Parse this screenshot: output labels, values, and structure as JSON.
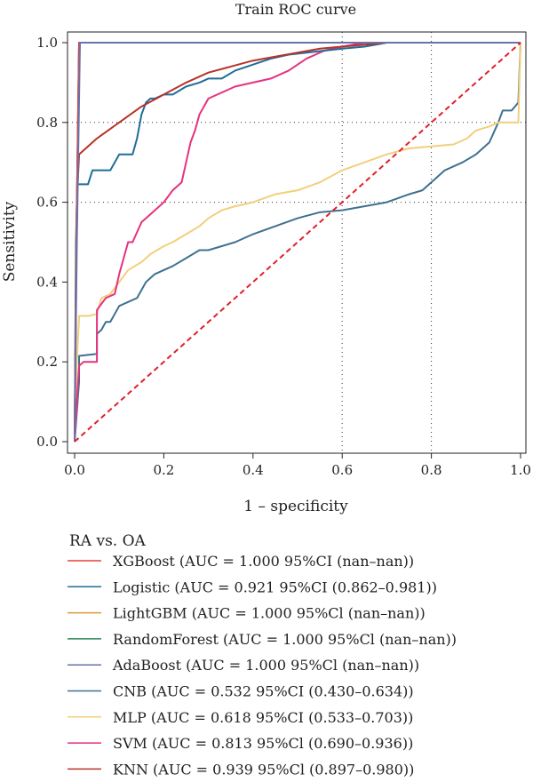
{
  "chart_data": {
    "type": "line",
    "title": "Train ROC curve",
    "xlabel": "1 – specificity",
    "ylabel": "Sensitivity",
    "xlim": [
      0,
      1
    ],
    "ylim": [
      0,
      1
    ],
    "x_ticks": [
      "0.0",
      "0.2",
      "0.4",
      "0.6",
      "0.8",
      "1.0"
    ],
    "y_ticks": [
      "0.0",
      "0.2",
      "0.4",
      "0.6",
      "0.8",
      "1.0"
    ],
    "grid": "dotted at 0.6 and 0.8",
    "legend_title": "RA vs. OA",
    "legend_position": "bottom",
    "reference_line": {
      "x": [
        0,
        1
      ],
      "y": [
        0,
        1
      ],
      "color": "#e0202a",
      "style": "dashed"
    },
    "series": [
      {
        "name": "XGBoost (AUC = 1.000 95%CI (nan–nan))",
        "color": "#e8413a",
        "x": [
          0,
          0.005,
          0.01,
          1
        ],
        "y": [
          0,
          0.6,
          1,
          1
        ]
      },
      {
        "name": "Logistic (AUC = 0.921 95%CI (0.862–0.981))",
        "color": "#1f6d99",
        "x": [
          0,
          0.003,
          0.006,
          0.01,
          0.02,
          0.03,
          0.04,
          0.05,
          0.06,
          0.07,
          0.08,
          0.09,
          0.1,
          0.11,
          0.12,
          0.13,
          0.14,
          0.15,
          0.16,
          0.17,
          0.18,
          0.2,
          0.22,
          0.25,
          0.28,
          0.3,
          0.33,
          0.36,
          0.4,
          0.44,
          0.48,
          0.52,
          0.56,
          0.6,
          0.65,
          0.7,
          0.75,
          1
        ],
        "y": [
          0,
          0.5,
          0.645,
          0.645,
          0.645,
          0.645,
          0.68,
          0.68,
          0.68,
          0.68,
          0.68,
          0.7,
          0.72,
          0.72,
          0.72,
          0.72,
          0.76,
          0.82,
          0.85,
          0.86,
          0.86,
          0.87,
          0.87,
          0.89,
          0.9,
          0.91,
          0.91,
          0.93,
          0.945,
          0.96,
          0.97,
          0.975,
          0.98,
          0.985,
          0.99,
          1,
          1,
          1
        ]
      },
      {
        "name": "LightGBM (AUC = 1.000 95%Cl (nan–nan))",
        "color": "#d69a3a",
        "x": [
          0,
          0.004,
          0.01,
          1
        ],
        "y": [
          0,
          0.5,
          1,
          1
        ]
      },
      {
        "name": "RandomForest (AUC = 1.000 95%Cl (nan–nan))",
        "color": "#2a8a57",
        "x": [
          0,
          0.004,
          0.01,
          1
        ],
        "y": [
          0,
          0.5,
          1,
          1
        ]
      },
      {
        "name": "AdaBoost (AUC = 1.000 95%Cl (nan–nan))",
        "color": "#6a72aa",
        "x": [
          0,
          0.005,
          0.012,
          1
        ],
        "y": [
          0,
          0.5,
          1,
          1
        ]
      },
      {
        "name": "CNB (AUC = 0.532 95%CI (0.430–0.634))",
        "color": "#3f7190",
        "x": [
          0,
          0.01,
          0.01,
          0.05,
          0.05,
          0.06,
          0.07,
          0.08,
          0.09,
          0.1,
          0.12,
          0.14,
          0.15,
          0.16,
          0.18,
          0.2,
          0.22,
          0.25,
          0.28,
          0.3,
          0.33,
          0.36,
          0.4,
          0.45,
          0.5,
          0.55,
          0.6,
          0.65,
          0.7,
          0.75,
          0.78,
          0.8,
          0.83,
          0.87,
          0.9,
          0.93,
          0.95,
          0.96,
          0.97,
          0.98,
          0.995,
          1
        ],
        "y": [
          0,
          0.15,
          0.215,
          0.22,
          0.27,
          0.28,
          0.3,
          0.3,
          0.32,
          0.34,
          0.35,
          0.36,
          0.38,
          0.4,
          0.42,
          0.43,
          0.44,
          0.46,
          0.48,
          0.48,
          0.49,
          0.5,
          0.52,
          0.54,
          0.56,
          0.575,
          0.58,
          0.59,
          0.6,
          0.62,
          0.63,
          0.65,
          0.68,
          0.7,
          0.72,
          0.75,
          0.8,
          0.83,
          0.83,
          0.83,
          0.85,
          1
        ]
      },
      {
        "name": "MLP (AUC = 0.618 95%CI (0.533–0.703))",
        "color": "#f2cf7c",
        "x": [
          0,
          0.005,
          0.01,
          0.01,
          0.03,
          0.05,
          0.06,
          0.08,
          0.1,
          0.12,
          0.15,
          0.17,
          0.2,
          0.22,
          0.25,
          0.28,
          0.3,
          0.33,
          0.36,
          0.4,
          0.45,
          0.5,
          0.55,
          0.6,
          0.65,
          0.7,
          0.75,
          0.8,
          0.85,
          0.88,
          0.9,
          0.93,
          0.95,
          0.97,
          0.99,
          0.995,
          1
        ],
        "y": [
          0,
          0.2,
          0.31,
          0.315,
          0.315,
          0.32,
          0.36,
          0.37,
          0.4,
          0.43,
          0.45,
          0.47,
          0.49,
          0.5,
          0.52,
          0.54,
          0.56,
          0.58,
          0.59,
          0.6,
          0.62,
          0.63,
          0.65,
          0.68,
          0.7,
          0.72,
          0.735,
          0.74,
          0.745,
          0.76,
          0.78,
          0.79,
          0.8,
          0.8,
          0.8,
          0.8,
          1
        ]
      },
      {
        "name": "SVM (AUC = 0.813 95%Cl (0.690–0.936))",
        "color": "#e6327f",
        "x": [
          0,
          0.005,
          0.01,
          0.02,
          0.04,
          0.05,
          0.05,
          0.07,
          0.09,
          0.1,
          0.12,
          0.13,
          0.15,
          0.17,
          0.18,
          0.2,
          0.22,
          0.24,
          0.25,
          0.26,
          0.27,
          0.28,
          0.3,
          0.32,
          0.34,
          0.36,
          0.4,
          0.44,
          0.48,
          0.52,
          0.56,
          0.6,
          0.65,
          0.7,
          1
        ],
        "y": [
          0,
          0.1,
          0.19,
          0.2,
          0.2,
          0.2,
          0.33,
          0.36,
          0.37,
          0.42,
          0.5,
          0.5,
          0.55,
          0.57,
          0.58,
          0.6,
          0.63,
          0.65,
          0.7,
          0.75,
          0.78,
          0.82,
          0.86,
          0.87,
          0.88,
          0.89,
          0.9,
          0.91,
          0.93,
          0.96,
          0.98,
          0.99,
          1,
          1,
          1
        ]
      },
      {
        "name": "KNN (AUC = 0.939 95%Cl (0.897–0.980))",
        "color": "#b8322a",
        "x": [
          0,
          0.005,
          0.01,
          0.02,
          0.05,
          0.1,
          0.15,
          0.2,
          0.25,
          0.3,
          0.35,
          0.4,
          0.45,
          0.5,
          0.55,
          0.6,
          0.65,
          0.7,
          0.75,
          0.8,
          1
        ],
        "y": [
          0,
          0.6,
          0.72,
          0.73,
          0.76,
          0.8,
          0.84,
          0.87,
          0.9,
          0.925,
          0.94,
          0.955,
          0.965,
          0.975,
          0.985,
          0.99,
          0.995,
          1,
          1,
          1,
          1
        ]
      }
    ]
  }
}
